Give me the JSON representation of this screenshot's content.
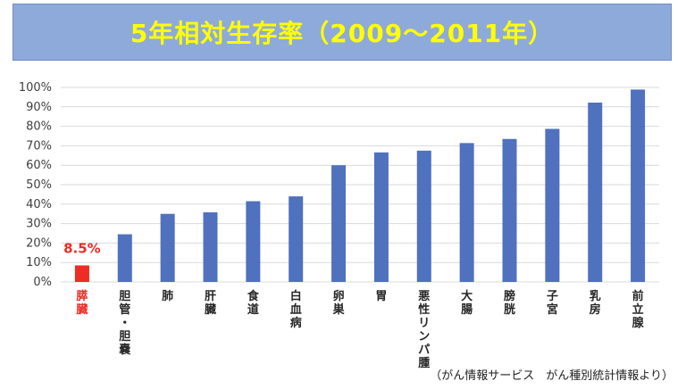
{
  "title": "5年相対生存率（2009〜2011年）",
  "source_note": "（がん情報サービス　がん種別統計情報より）",
  "colors": {
    "bar": "#4f71be",
    "highlight": "#ee2b24",
    "grid": "#d9d9d9",
    "title_bg": "#8eaadb",
    "title_text": "#ffff00"
  },
  "chart_data": {
    "type": "bar",
    "ylim": [
      0,
      100
    ],
    "y_ticks": [
      "0%",
      "10%",
      "20%",
      "30%",
      "40%",
      "50%",
      "60%",
      "70%",
      "80%",
      "90%",
      "100%"
    ],
    "categories": [
      "膵臓",
      "胆管・胆嚢",
      "肺",
      "肝臓",
      "食道",
      "白血病",
      "卵巣",
      "胃",
      "悪性リンパ腫",
      "大腸",
      "膀胱",
      "子宮",
      "乳房",
      "前立腺"
    ],
    "values": [
      8.5,
      24.5,
      35.0,
      35.8,
      41.5,
      44.0,
      60.0,
      66.6,
      67.5,
      71.4,
      73.5,
      78.7,
      92.2,
      98.9
    ],
    "highlight_index": 0,
    "highlight_label": "8.5%",
    "grid": true
  }
}
